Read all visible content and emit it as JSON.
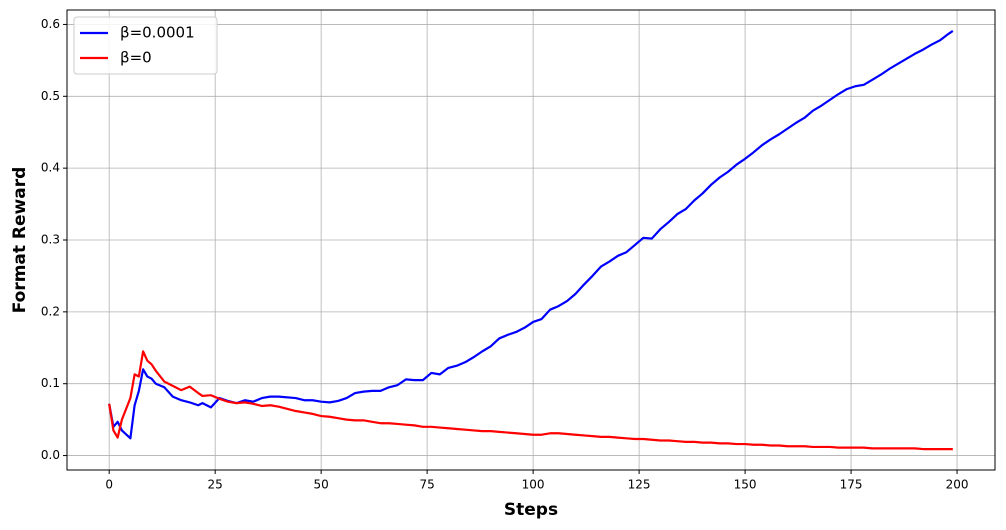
{
  "chart_data": {
    "type": "line",
    "xlabel": "Steps",
    "ylabel": "Format Reward",
    "x": [
      0,
      1,
      2,
      3,
      5,
      6,
      7,
      8,
      9,
      10,
      11,
      13,
      15,
      17,
      19,
      21,
      22,
      24,
      26,
      28,
      30,
      32,
      34,
      36,
      38,
      40,
      44,
      46,
      48,
      50,
      52,
      54,
      56,
      58,
      60,
      62,
      64,
      66,
      68,
      70,
      72,
      74,
      76,
      78,
      80,
      82,
      84,
      86,
      88,
      90,
      92,
      94,
      96,
      98,
      100,
      102,
      104,
      106,
      108,
      110,
      112,
      114,
      116,
      118,
      120,
      122,
      124,
      126,
      128,
      130,
      132,
      134,
      136,
      138,
      140,
      142,
      144,
      146,
      148,
      150,
      152,
      154,
      156,
      158,
      160,
      162,
      164,
      166,
      168,
      170,
      172,
      174,
      176,
      178,
      180,
      182,
      184,
      186,
      188,
      190,
      192,
      194,
      196,
      198,
      199
    ],
    "series": [
      {
        "name": "β=0.0001",
        "color": "#0000ff",
        "values": [
          0.072,
          0.04,
          0.047,
          0.035,
          0.024,
          0.07,
          0.09,
          0.12,
          0.11,
          0.107,
          0.1,
          0.095,
          0.082,
          0.077,
          0.074,
          0.07,
          0.073,
          0.067,
          0.08,
          0.076,
          0.073,
          0.077,
          0.075,
          0.08,
          0.082,
          0.082,
          0.08,
          0.077,
          0.077,
          0.075,
          0.074,
          0.076,
          0.08,
          0.087,
          0.089,
          0.09,
          0.09,
          0.095,
          0.098,
          0.106,
          0.105,
          0.105,
          0.115,
          0.113,
          0.122,
          0.125,
          0.13,
          0.137,
          0.145,
          0.152,
          0.163,
          0.168,
          0.172,
          0.178,
          0.186,
          0.19,
          0.203,
          0.208,
          0.215,
          0.225,
          0.238,
          0.25,
          0.263,
          0.27,
          0.278,
          0.283,
          0.293,
          0.303,
          0.302,
          0.315,
          0.325,
          0.336,
          0.343,
          0.355,
          0.365,
          0.377,
          0.387,
          0.395,
          0.405,
          0.413,
          0.422,
          0.432,
          0.44,
          0.447,
          0.455,
          0.463,
          0.47,
          0.48,
          0.487,
          0.495,
          0.503,
          0.51,
          0.514,
          0.516,
          0.523,
          0.53,
          0.538,
          0.545,
          0.552,
          0.559,
          0.565,
          0.572,
          0.578,
          0.587,
          0.591
        ]
      },
      {
        "name": "β=0",
        "color": "#ff0000",
        "values": [
          0.072,
          0.035,
          0.025,
          0.05,
          0.08,
          0.113,
          0.11,
          0.145,
          0.132,
          0.127,
          0.118,
          0.103,
          0.097,
          0.091,
          0.096,
          0.087,
          0.083,
          0.084,
          0.079,
          0.075,
          0.073,
          0.074,
          0.072,
          0.069,
          0.07,
          0.068,
          0.062,
          0.06,
          0.058,
          0.055,
          0.054,
          0.052,
          0.05,
          0.049,
          0.049,
          0.047,
          0.045,
          0.045,
          0.044,
          0.043,
          0.042,
          0.04,
          0.04,
          0.039,
          0.038,
          0.037,
          0.036,
          0.035,
          0.034,
          0.034,
          0.033,
          0.032,
          0.031,
          0.03,
          0.029,
          0.029,
          0.031,
          0.031,
          0.03,
          0.029,
          0.028,
          0.027,
          0.026,
          0.026,
          0.025,
          0.024,
          0.023,
          0.023,
          0.022,
          0.021,
          0.021,
          0.02,
          0.019,
          0.019,
          0.018,
          0.018,
          0.017,
          0.017,
          0.016,
          0.016,
          0.015,
          0.015,
          0.014,
          0.014,
          0.013,
          0.013,
          0.013,
          0.012,
          0.012,
          0.012,
          0.011,
          0.011,
          0.011,
          0.011,
          0.01,
          0.01,
          0.01,
          0.01,
          0.01,
          0.01,
          0.009,
          0.009,
          0.009,
          0.009,
          0.009
        ]
      }
    ],
    "xlim": [
      -9.95,
      208.95
    ],
    "xticks": [
      0,
      25,
      50,
      75,
      100,
      125,
      150,
      175,
      200
    ],
    "ylim": [
      -0.0201,
      0.6201
    ],
    "yticks": [
      {
        "value": 0,
        "label": "0.0"
      },
      0.1,
      0.2,
      0.3,
      0.4,
      0.5,
      0.6
    ],
    "grid": true,
    "legend": "upper left"
  }
}
